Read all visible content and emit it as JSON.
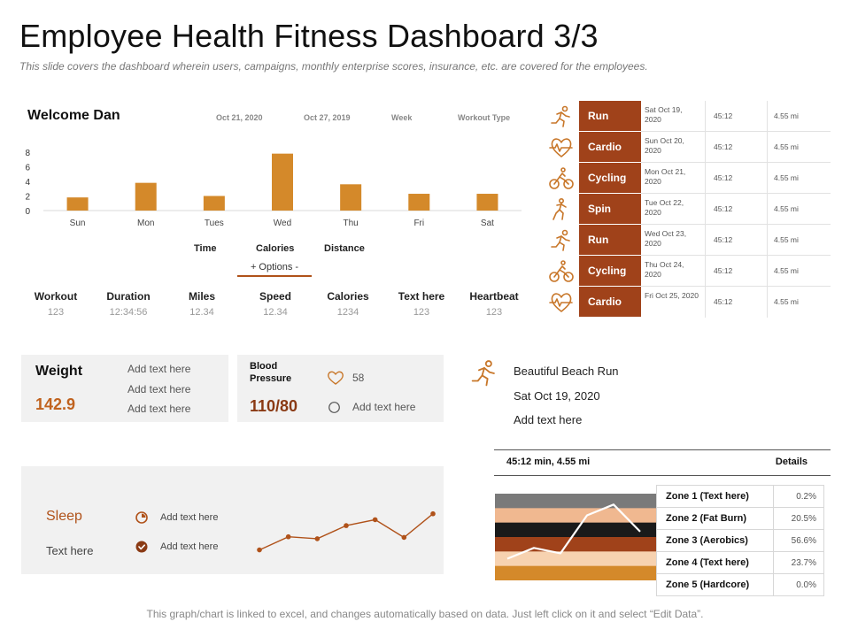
{
  "header": {
    "title": "Employee Health Fitness Dashboard 3/3",
    "subtitle": "This slide covers the dashboard wherein users, campaigns, monthly enterprise scores, insurance, etc. are covered for the employees."
  },
  "week_panel": {
    "welcome": "Welcome Dan",
    "date1": "Oct 21, 2020",
    "date2": "Oct 27, 2019",
    "week_label": "Week",
    "workout_type_label": "Workout Type",
    "toggles": {
      "time": "Time",
      "calories": "Calories",
      "distance": "Distance"
    },
    "options": "+   Options   -"
  },
  "chart_data": {
    "type": "bar",
    "categories": [
      "Sun",
      "Mon",
      "Tues",
      "Wed",
      "Thu",
      "Fri",
      "Sat"
    ],
    "values": [
      1.8,
      3.8,
      2.0,
      7.8,
      3.6,
      2.3,
      2.3
    ],
    "yticks": [
      "0",
      "2",
      "4",
      "6",
      "8"
    ],
    "ylim": [
      0,
      8
    ],
    "color": "#d4892a"
  },
  "stats": [
    {
      "label": "Workout",
      "value": "123"
    },
    {
      "label": "Duration",
      "value": "12:34:56"
    },
    {
      "label": "Miles",
      "value": "12.34"
    },
    {
      "label": "Speed",
      "value": "12.34"
    },
    {
      "label": "Calories",
      "value": "1234"
    },
    {
      "label": "Text here",
      "value": "123"
    },
    {
      "label": "Heartbeat",
      "value": "123"
    }
  ],
  "activities": [
    {
      "icon": "runner-icon",
      "name": "Run",
      "date": "Sat Oct 19, 2020",
      "time": "45:12",
      "distance": "4.55 mi"
    },
    {
      "icon": "heart-rate-icon",
      "name": "Cardio",
      "date": "Sun Oct 20, 2020",
      "time": "45:12",
      "distance": "4.55 mi"
    },
    {
      "icon": "cyclist-icon",
      "name": "Cycling",
      "date": "Mon Oct 21, 2020",
      "time": "45:12",
      "distance": "4.55 mi"
    },
    {
      "icon": "spin-icon",
      "name": "Spin",
      "date": "Tue Oct 22, 2020",
      "time": "45:12",
      "distance": "4.55 mi"
    },
    {
      "icon": "runner-icon",
      "name": "Run",
      "date": "Wed Oct 23, 2020",
      "time": "45:12",
      "distance": "4.55 mi"
    },
    {
      "icon": "cyclist-icon",
      "name": "Cycling",
      "date": "Thu Oct 24, 2020",
      "time": "45:12",
      "distance": "4.55 mi"
    },
    {
      "icon": "heart-rate-icon",
      "name": "Cardio",
      "date": "Fri Oct 25, 2020",
      "time": "45:12",
      "distance": "4.55 mi"
    }
  ],
  "weight": {
    "title": "Weight",
    "value": "142.9",
    "notes": [
      "Add text here",
      "Add text here",
      "Add text here"
    ]
  },
  "blood_pressure": {
    "title": "Blood Pressure",
    "value": "110/80",
    "heart_value": "58",
    "note": "Add text here"
  },
  "beach_run": {
    "title": "Beautiful Beach Run",
    "date": "Sat Oct 19, 2020",
    "note": "Add text here",
    "stats": "45:12 min,   4.55 mi",
    "details": "Details"
  },
  "zones": [
    {
      "name": "Zone 1 (Text here)",
      "pct": "0.2%"
    },
    {
      "name": "Zone 2  (Fat Burn)",
      "pct": "20.5%"
    },
    {
      "name": "Zone 3 (Aerobics)",
      "pct": "56.6%"
    },
    {
      "name": "Zone 4 (Text here)",
      "pct": "23.7%"
    },
    {
      "name": "Zone 5  (Hardcore)",
      "pct": "0.0%"
    }
  ],
  "zone_chart": {
    "band_colors": [
      "#7a7a7a",
      "#f0b890",
      "#1a1a1a",
      "#a0421a",
      "#f7d2b0",
      "#d4892a"
    ],
    "line_values": [
      2,
      3,
      2.5,
      6,
      7,
      4.5
    ]
  },
  "sleep": {
    "title": "Sleep",
    "text": "Text here",
    "note1": "Add text here",
    "note2": "Add text here",
    "series": [
      1,
      3,
      2.7,
      4.7,
      5.6,
      2.9,
      6.5
    ],
    "color": "#b0521a"
  },
  "footer": "This graph/chart is linked to excel, and changes automatically based on data. Just left click on it and select “Edit Data”."
}
